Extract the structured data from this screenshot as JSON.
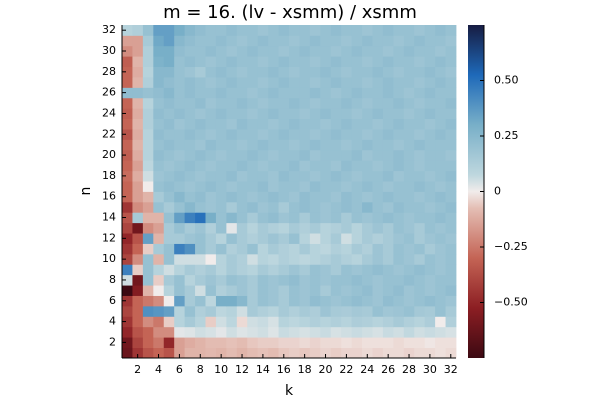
{
  "chart_data": {
    "type": "heatmap",
    "title": "m = 16. (lv - xsmm) / xsmm",
    "xlabel": "k",
    "ylabel": "n",
    "colormap": "balance",
    "x": [
      1,
      2,
      3,
      4,
      5,
      6,
      7,
      8,
      9,
      10,
      11,
      12,
      13,
      14,
      15,
      16,
      17,
      18,
      19,
      20,
      21,
      22,
      23,
      24,
      25,
      26,
      27,
      28,
      29,
      30,
      31,
      32
    ],
    "y": [
      1,
      2,
      3,
      4,
      5,
      6,
      7,
      8,
      9,
      10,
      11,
      12,
      13,
      14,
      15,
      16,
      17,
      18,
      19,
      20,
      21,
      22,
      23,
      24,
      25,
      26,
      27,
      28,
      29,
      30,
      31,
      32
    ],
    "xlim": [
      0.5,
      32.5
    ],
    "ylim": [
      0.5,
      32.5
    ],
    "xticks": [
      2,
      4,
      6,
      8,
      10,
      12,
      14,
      16,
      18,
      20,
      22,
      24,
      26,
      28,
      30,
      32
    ],
    "yticks": [
      2,
      4,
      6,
      8,
      10,
      12,
      14,
      16,
      18,
      20,
      22,
      24,
      26,
      28,
      30,
      32
    ],
    "clim": [
      -0.75,
      0.75
    ],
    "colorbar_ticks": [
      {
        "value": 0.5,
        "label": "0.50"
      },
      {
        "value": 0.25,
        "label": "0.25"
      },
      0,
      {
        "value": -0.25,
        "label": "−0.25"
      },
      {
        "value": -0.5,
        "label": "−0.50"
      }
    ],
    "z": [
      [
        -0.62,
        -0.45,
        -0.35,
        -0.3,
        -0.35,
        -0.15,
        -0.1,
        -0.1,
        -0.09,
        -0.1,
        -0.08,
        -0.1,
        -0.08,
        -0.07,
        -0.08,
        -0.06,
        -0.05,
        -0.06,
        -0.05,
        -0.04,
        -0.05,
        -0.04,
        -0.04,
        -0.03,
        -0.04,
        -0.03,
        -0.03,
        -0.04,
        -0.03,
        -0.03,
        -0.02,
        -0.03
      ],
      [
        -0.6,
        -0.4,
        -0.3,
        -0.25,
        -0.5,
        -0.15,
        -0.12,
        -0.1,
        -0.08,
        -0.08,
        -0.07,
        -0.08,
        -0.06,
        -0.05,
        -0.05,
        -0.04,
        -0.04,
        -0.03,
        -0.04,
        -0.03,
        -0.03,
        -0.02,
        -0.03,
        -0.02,
        -0.02,
        -0.02,
        -0.03,
        -0.02,
        -0.02,
        -0.01,
        -0.02,
        -0.02
      ],
      [
        -0.5,
        -0.35,
        -0.3,
        -0.2,
        -0.2,
        0.02,
        0.03,
        0.05,
        0.04,
        0.02,
        0.05,
        0.03,
        0.04,
        0.05,
        0.03,
        0.06,
        0.05,
        0.04,
        0.05,
        0.06,
        0.04,
        0.05,
        0.06,
        0.05,
        0.04,
        0.06,
        0.05,
        0.07,
        0.05,
        0.06,
        0.05,
        0.04
      ],
      [
        -0.45,
        -0.3,
        -0.2,
        -0.25,
        -0.05,
        0.1,
        0.15,
        0.1,
        -0.05,
        0.05,
        0.08,
        -0.03,
        0.05,
        0.06,
        0.04,
        0.1,
        0.08,
        0.1,
        0.12,
        0.1,
        0.12,
        0.1,
        0.13,
        0.12,
        0.1,
        0.12,
        0.15,
        0.12,
        0.1,
        0.13,
        0.0,
        0.12
      ],
      [
        -0.4,
        -0.3,
        0.4,
        0.38,
        0.35,
        0.1,
        0.2,
        0.12,
        0.15,
        0.08,
        0.1,
        0.05,
        0.15,
        0.12,
        0.1,
        0.15,
        0.12,
        0.15,
        0.13,
        0.18,
        0.15,
        0.14,
        0.16,
        0.15,
        0.2,
        0.17,
        0.18,
        0.2,
        0.16,
        0.15,
        0.2,
        0.15
      ],
      [
        -0.45,
        -0.3,
        -0.25,
        -0.2,
        0.0,
        0.35,
        0.15,
        0.2,
        0.08,
        0.3,
        0.3,
        0.25,
        0.15,
        0.2,
        0.18,
        0.15,
        0.2,
        0.18,
        0.22,
        0.2,
        0.18,
        0.2,
        0.22,
        0.2,
        0.18,
        0.22,
        0.2,
        0.18,
        0.2,
        0.22,
        0.2,
        0.18
      ],
      [
        -0.75,
        -0.55,
        -0.1,
        0.0,
        0.1,
        0.2,
        0.15,
        0.05,
        0.2,
        0.12,
        0.15,
        0.18,
        0.15,
        0.2,
        0.18,
        0.15,
        0.2,
        0.18,
        0.2,
        0.15,
        0.2,
        0.18,
        0.2,
        0.22,
        0.18,
        0.2,
        0.22,
        0.18,
        0.2,
        0.18,
        0.2,
        0.22
      ],
      [
        0.05,
        -0.6,
        0.2,
        -0.05,
        0.15,
        0.2,
        0.1,
        0.15,
        0.18,
        0.15,
        0.2,
        0.18,
        0.15,
        0.2,
        0.18,
        0.2,
        0.22,
        0.18,
        0.2,
        0.18,
        0.2,
        0.2,
        0.22,
        0.2,
        0.18,
        0.2,
        0.2,
        0.22,
        0.2,
        0.18,
        0.2,
        0.2
      ],
      [
        0.45,
        -0.05,
        0.2,
        0.1,
        0.05,
        0.1,
        0.15,
        0.12,
        0.15,
        0.1,
        0.15,
        0.12,
        0.1,
        0.15,
        0.12,
        0.15,
        0.18,
        0.15,
        0.2,
        0.18,
        0.15,
        0.2,
        0.18,
        0.2,
        0.22,
        0.2,
        0.18,
        0.2,
        0.22,
        0.2,
        0.18,
        0.2
      ],
      [
        -0.4,
        -0.2,
        0.2,
        -0.1,
        0.2,
        0.05,
        0.05,
        0.05,
        0.0,
        0.1,
        0.15,
        0.12,
        0.05,
        0.1,
        0.08,
        0.12,
        0.1,
        0.08,
        0.1,
        0.12,
        0.15,
        0.12,
        0.1,
        0.15,
        0.18,
        0.15,
        0.2,
        0.18,
        0.15,
        0.2,
        0.18,
        0.2
      ],
      [
        -0.45,
        -0.3,
        -0.05,
        0.15,
        0.2,
        0.45,
        0.4,
        0.2,
        0.15,
        0.2,
        0.12,
        0.15,
        0.2,
        0.1,
        0.15,
        0.12,
        0.1,
        0.15,
        0.1,
        0.08,
        0.12,
        0.1,
        0.15,
        0.12,
        0.18,
        0.15,
        0.2,
        0.18,
        0.2,
        0.15,
        0.18,
        0.2
      ],
      [
        -0.5,
        -0.35,
        0.35,
        -0.1,
        0.15,
        0.15,
        0.18,
        0.2,
        0.15,
        0.1,
        0.2,
        0.15,
        0.12,
        0.15,
        0.18,
        0.15,
        0.2,
        0.1,
        0.05,
        0.1,
        0.15,
        0.05,
        0.1,
        0.15,
        0.12,
        0.15,
        0.18,
        0.2,
        0.15,
        0.18,
        0.2,
        0.18
      ],
      [
        -0.4,
        -0.6,
        -0.2,
        -0.15,
        0.15,
        0.2,
        0.15,
        0.18,
        0.12,
        0.2,
        0.02,
        0.15,
        0.1,
        0.15,
        0.12,
        0.1,
        0.15,
        0.12,
        0.15,
        0.1,
        0.12,
        0.15,
        0.1,
        0.15,
        0.18,
        0.15,
        0.2,
        0.18,
        0.15,
        0.2,
        0.18,
        0.2
      ],
      [
        -0.35,
        0.15,
        -0.1,
        -0.1,
        0.2,
        0.35,
        0.45,
        0.5,
        0.3,
        0.2,
        0.25,
        0.2,
        0.15,
        0.2,
        0.22,
        0.18,
        0.2,
        0.15,
        0.2,
        0.18,
        0.2,
        0.15,
        0.2,
        0.18,
        0.2,
        0.22,
        0.2,
        0.18,
        0.2,
        0.2,
        0.22,
        0.2
      ],
      [
        -0.45,
        -0.2,
        -0.15,
        0.2,
        0.15,
        0.2,
        0.25,
        0.2,
        0.18,
        0.2,
        0.15,
        0.2,
        0.22,
        0.18,
        0.2,
        0.15,
        0.2,
        0.22,
        0.2,
        0.18,
        0.2,
        0.22,
        0.2,
        0.25,
        0.2,
        0.18,
        0.22,
        0.2,
        0.2,
        0.18,
        0.2,
        0.22
      ],
      [
        -0.3,
        -0.15,
        -0.1,
        0.15,
        0.2,
        0.25,
        0.2,
        0.22,
        0.18,
        0.2,
        0.22,
        0.2,
        0.18,
        0.2,
        0.22,
        0.2,
        0.18,
        0.22,
        0.2,
        0.2,
        0.18,
        0.22,
        0.2,
        0.18,
        0.2,
        0.22,
        0.2,
        0.2,
        0.18,
        0.2,
        0.22,
        0.2
      ],
      [
        -0.3,
        -0.15,
        0.0,
        0.2,
        0.22,
        0.2,
        0.18,
        0.2,
        0.22,
        0.2,
        0.18,
        0.2,
        0.2,
        0.22,
        0.18,
        0.2,
        0.2,
        0.18,
        0.22,
        0.2,
        0.2,
        0.18,
        0.2,
        0.22,
        0.2,
        0.18,
        0.2,
        0.2,
        0.22,
        0.2,
        0.18,
        0.2
      ],
      [
        -0.28,
        -0.12,
        0.05,
        0.18,
        0.2,
        0.22,
        0.2,
        0.18,
        0.2,
        0.2,
        0.22,
        0.18,
        0.2,
        0.2,
        0.18,
        0.22,
        0.2,
        0.2,
        0.18,
        0.2,
        0.22,
        0.2,
        0.18,
        0.2,
        0.2,
        0.22,
        0.18,
        0.2,
        0.2,
        0.18,
        0.2,
        0.22
      ],
      [
        -0.3,
        -0.15,
        0.08,
        0.2,
        0.18,
        0.2,
        0.22,
        0.2,
        0.18,
        0.2,
        0.2,
        0.22,
        0.2,
        0.18,
        0.2,
        0.2,
        0.22,
        0.18,
        0.2,
        0.2,
        0.18,
        0.22,
        0.2,
        0.2,
        0.18,
        0.2,
        0.22,
        0.2,
        0.18,
        0.2,
        0.2,
        0.2
      ],
      [
        -0.32,
        -0.12,
        0.1,
        0.22,
        0.2,
        0.18,
        0.2,
        0.22,
        0.2,
        0.18,
        0.2,
        0.2,
        0.22,
        0.2,
        0.18,
        0.2,
        0.2,
        0.22,
        0.18,
        0.2,
        0.2,
        0.2,
        0.22,
        0.18,
        0.2,
        0.2,
        0.22,
        0.2,
        0.18,
        0.2,
        0.2,
        0.18
      ],
      [
        -0.3,
        -0.1,
        0.1,
        0.2,
        0.22,
        0.2,
        0.2,
        0.18,
        0.22,
        0.2,
        0.2,
        0.18,
        0.2,
        0.22,
        0.2,
        0.2,
        0.18,
        0.2,
        0.22,
        0.2,
        0.2,
        0.18,
        0.2,
        0.22,
        0.2,
        0.2,
        0.18,
        0.2,
        0.22,
        0.2,
        0.2,
        0.2
      ],
      [
        -0.35,
        -0.12,
        0.1,
        0.22,
        0.2,
        0.2,
        0.22,
        0.2,
        0.18,
        0.2,
        0.22,
        0.2,
        0.2,
        0.18,
        0.2,
        0.22,
        0.2,
        0.2,
        0.18,
        0.2,
        0.22,
        0.2,
        0.2,
        0.18,
        0.2,
        0.22,
        0.2,
        0.2,
        0.18,
        0.2,
        0.22,
        0.2
      ],
      [
        -0.3,
        -0.1,
        0.12,
        0.2,
        0.22,
        0.18,
        0.2,
        0.22,
        0.2,
        0.2,
        0.18,
        0.22,
        0.2,
        0.2,
        0.18,
        0.2,
        0.22,
        0.2,
        0.2,
        0.18,
        0.2,
        0.22,
        0.2,
        0.2,
        0.18,
        0.2,
        0.22,
        0.2,
        0.2,
        0.18,
        0.2,
        0.22
      ],
      [
        -0.32,
        -0.12,
        0.12,
        0.22,
        0.2,
        0.22,
        0.2,
        0.18,
        0.2,
        0.22,
        0.2,
        0.2,
        0.18,
        0.2,
        0.22,
        0.2,
        0.2,
        0.18,
        0.2,
        0.22,
        0.2,
        0.2,
        0.18,
        0.2,
        0.22,
        0.2,
        0.2,
        0.18,
        0.2,
        0.22,
        0.2,
        0.2
      ],
      [
        -0.3,
        -0.1,
        0.1,
        0.2,
        0.22,
        0.2,
        0.2,
        0.22,
        0.18,
        0.2,
        0.2,
        0.22,
        0.2,
        0.18,
        0.2,
        0.2,
        0.22,
        0.2,
        0.18,
        0.2,
        0.2,
        0.22,
        0.2,
        0.18,
        0.2,
        0.2,
        0.22,
        0.2,
        0.18,
        0.2,
        0.2,
        0.22
      ],
      [
        0.22,
        0.22,
        0.2,
        0.22,
        0.25,
        0.2,
        0.22,
        0.2,
        0.2,
        0.22,
        0.2,
        0.2,
        0.18,
        0.2,
        0.22,
        0.2,
        0.2,
        0.2,
        0.22,
        0.2,
        0.18,
        0.2,
        0.22,
        0.2,
        0.2,
        0.22,
        0.2,
        0.18,
        0.2,
        0.22,
        0.2,
        0.2
      ],
      [
        -0.3,
        -0.1,
        0.12,
        0.25,
        0.22,
        0.2,
        0.22,
        0.2,
        0.18,
        0.2,
        0.22,
        0.2,
        0.2,
        0.18,
        0.2,
        0.22,
        0.2,
        0.2,
        0.18,
        0.2,
        0.22,
        0.2,
        0.2,
        0.18,
        0.2,
        0.22,
        0.2,
        0.2,
        0.18,
        0.2,
        0.22,
        0.2
      ],
      [
        -0.3,
        -0.12,
        0.1,
        0.25,
        0.25,
        0.2,
        0.18,
        0.15,
        0.2,
        0.22,
        0.2,
        0.18,
        0.2,
        0.2,
        0.22,
        0.2,
        0.18,
        0.2,
        0.2,
        0.22,
        0.2,
        0.18,
        0.2,
        0.2,
        0.22,
        0.2,
        0.18,
        0.2,
        0.2,
        0.22,
        0.2,
        0.18
      ],
      [
        -0.32,
        -0.1,
        0.12,
        0.28,
        0.3,
        0.2,
        0.22,
        0.2,
        0.18,
        0.2,
        0.22,
        0.2,
        0.2,
        0.18,
        0.2,
        0.22,
        0.2,
        0.2,
        0.18,
        0.2,
        0.22,
        0.2,
        0.2,
        0.18,
        0.2,
        0.22,
        0.2,
        0.2,
        0.18,
        0.2,
        0.22,
        0.2
      ],
      [
        -0.2,
        -0.15,
        0.12,
        0.3,
        0.3,
        0.22,
        0.2,
        0.2,
        0.22,
        0.2,
        0.18,
        0.2,
        0.22,
        0.2,
        0.2,
        0.18,
        0.2,
        0.22,
        0.2,
        0.2,
        0.18,
        0.2,
        0.22,
        0.2,
        0.2,
        0.18,
        0.2,
        0.22,
        0.2,
        0.2,
        0.18,
        0.2
      ],
      [
        -0.15,
        -0.15,
        0.15,
        0.32,
        0.35,
        0.25,
        0.22,
        0.2,
        0.2,
        0.22,
        0.2,
        0.18,
        0.2,
        0.22,
        0.2,
        0.2,
        0.18,
        0.2,
        0.22,
        0.2,
        0.2,
        0.18,
        0.2,
        0.22,
        0.2,
        0.2,
        0.18,
        0.2,
        0.22,
        0.2,
        0.2,
        0.18
      ],
      [
        0.1,
        0.12,
        0.2,
        0.35,
        0.35,
        0.3,
        0.25,
        0.22,
        0.2,
        0.2,
        0.22,
        0.2,
        0.2,
        0.18,
        0.2,
        0.22,
        0.2,
        0.2,
        0.18,
        0.2,
        0.22,
        0.2,
        0.2,
        0.18,
        0.2,
        0.22,
        0.2,
        0.2,
        0.18,
        0.2,
        0.22,
        0.2
      ]
    ]
  }
}
